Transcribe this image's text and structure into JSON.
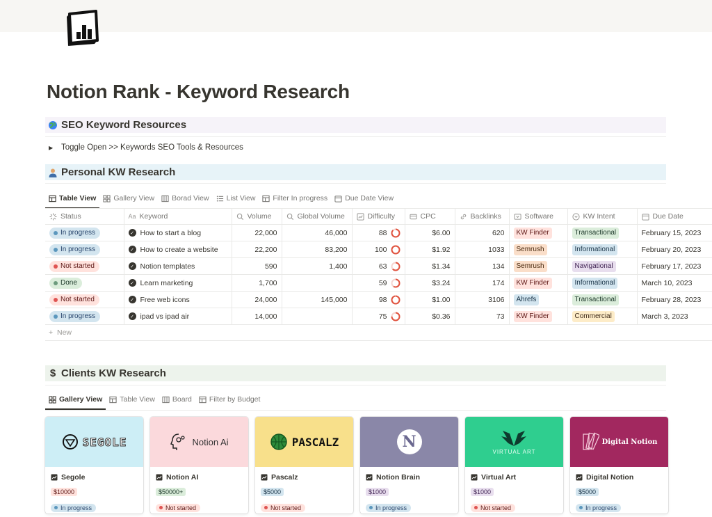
{
  "page": {
    "title": "Notion Rank - Keyword Research"
  },
  "sections": {
    "seo": {
      "title": "SEO Keyword Resources",
      "toggle_text": "Toggle Open >>  Keywords SEO Tools & Resources"
    },
    "personal": {
      "title": "Personal KW Research"
    },
    "clients": {
      "title": "Clients KW Research"
    }
  },
  "personal_views": [
    "Table View",
    "Gallery View",
    "Borad View",
    "List View",
    "Filter In progress",
    "Due Date View"
  ],
  "clients_views": [
    "Gallery View",
    "Table View",
    "Board",
    "Filter by Budget"
  ],
  "table": {
    "columns": [
      "Status",
      "Keyword",
      "Volume",
      "Global Volume",
      "Difficulty",
      "CPC",
      "Backlinks",
      "Software",
      "KW Intent",
      "Due Date"
    ],
    "rows": [
      {
        "status": "In progress",
        "keyword": "How to start a blog",
        "volume": "22,000",
        "global_volume": "46,000",
        "difficulty": "88",
        "difficulty_pct": 0.88,
        "cpc": "$6.00",
        "backlinks": "620",
        "software": "KW Finder",
        "intent": "Transactional",
        "due": "February 15, 2023"
      },
      {
        "status": "In progress",
        "keyword": "How to create a website",
        "volume": "22,200",
        "global_volume": "83,200",
        "difficulty": "100",
        "difficulty_pct": 1.0,
        "cpc": "$1.92",
        "backlinks": "1033",
        "software": "Semrush",
        "intent": "Informational",
        "due": "February 20, 2023"
      },
      {
        "status": "Not started",
        "keyword": "Notion templates",
        "volume": "590",
        "global_volume": "1,400",
        "difficulty": "63",
        "difficulty_pct": 0.63,
        "cpc": "$1.34",
        "backlinks": "134",
        "software": "Semrush",
        "intent": "Navigational",
        "due": "February 17, 2023"
      },
      {
        "status": "Done",
        "keyword": "Learn marketing",
        "volume": "1,700",
        "global_volume": "",
        "difficulty": "59",
        "difficulty_pct": 0.59,
        "cpc": "$3.24",
        "backlinks": "174",
        "software": "KW Finder",
        "intent": "Informational",
        "due": "March 10, 2023"
      },
      {
        "status": "Not started",
        "keyword": "Free web icons",
        "volume": "24,000",
        "global_volume": "145,000",
        "difficulty": "98",
        "difficulty_pct": 0.98,
        "cpc": "$1.00",
        "backlinks": "3106",
        "software": "Ahrefs",
        "intent": "Transactional",
        "due": "February 28, 2023"
      },
      {
        "status": "In progress",
        "keyword": "ipad vs ipad air",
        "volume": "14,000",
        "global_volume": "",
        "difficulty": "75",
        "difficulty_pct": 0.75,
        "cpc": "$0.36",
        "backlinks": "73",
        "software": "KW Finder",
        "intent": "Commercial",
        "due": "March 3, 2023"
      }
    ],
    "new_label": "New"
  },
  "cards": [
    {
      "name": "Segole",
      "budget": "$10000",
      "status": "In progress",
      "cover_text": "SEGOLE",
      "cover_color": "#cdeef6"
    },
    {
      "name": "Notion AI",
      "budget": "$50000+",
      "status": "Not started",
      "cover_text": "Notion Ai",
      "cover_color": "#fbd9dc"
    },
    {
      "name": "Pascalz",
      "budget": "$5000",
      "status": "Not started",
      "cover_text": "PASCALZ",
      "cover_color": "#f8e08b"
    },
    {
      "name": "Notion Brain",
      "budget": "$1000",
      "status": "In progress",
      "cover_text": "N",
      "cover_color": "#8a87a8"
    },
    {
      "name": "Virtual Art",
      "budget": "$1000",
      "status": "Not started",
      "cover_text": "VIRTUAL ART",
      "cover_color": "#2fce8f"
    },
    {
      "name": "Digital Notion",
      "budget": "$5000",
      "status": "In progress",
      "cover_text": "Digital Notion",
      "cover_color": "#a2285f"
    }
  ]
}
